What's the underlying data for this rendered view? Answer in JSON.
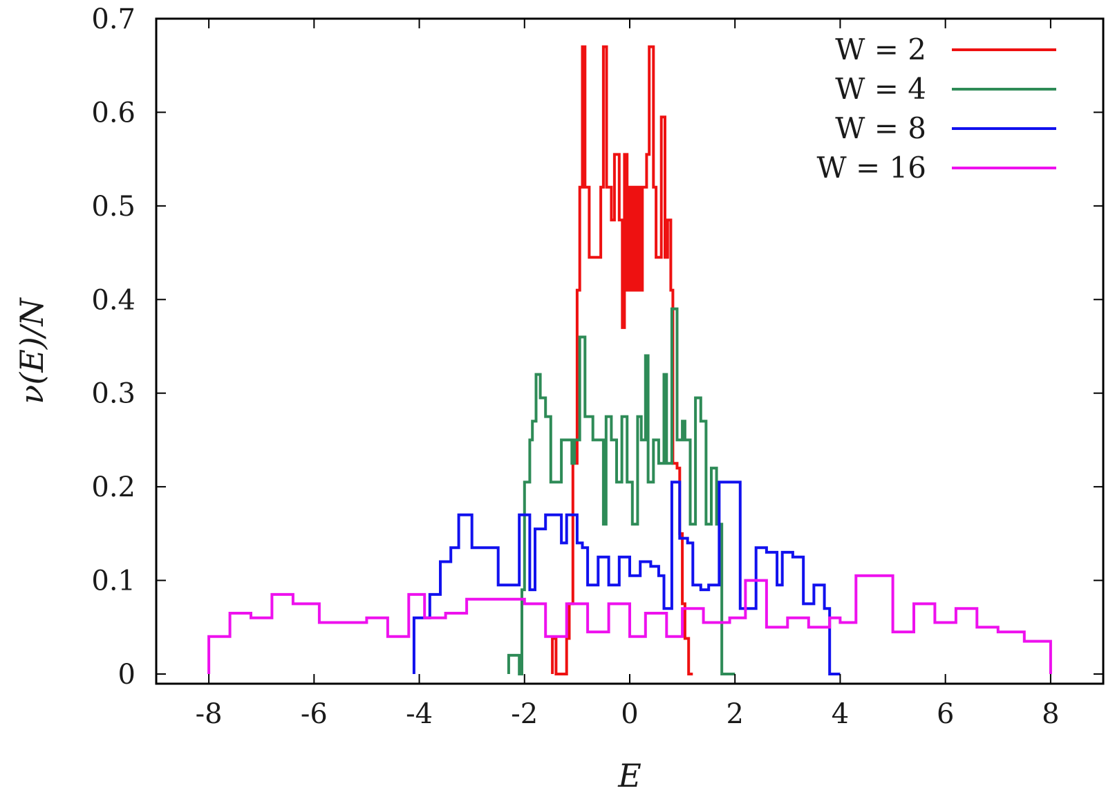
{
  "chart_data": {
    "type": "line",
    "title": "",
    "xlabel": "E",
    "ylabel": "ν(E)/N",
    "xlim": [
      -9,
      9
    ],
    "ylim": [
      0,
      0.7
    ],
    "xticks": [
      -8,
      -6,
      -4,
      -2,
      0,
      2,
      4,
      6,
      8
    ],
    "xtick_labels": [
      "-8",
      "-6",
      "-4",
      "-2",
      "0",
      "2",
      "4",
      "6",
      "8"
    ],
    "yticks": [
      0,
      0.1,
      0.2,
      0.3,
      0.4,
      0.5,
      0.6,
      0.7
    ],
    "ytick_labels": [
      "0",
      "0.1",
      "0.2",
      "0.3",
      "0.4",
      "0.5",
      "0.6",
      "0.7"
    ],
    "legend_position": "top-right",
    "grid": false,
    "series": [
      {
        "name": "W = 2",
        "color": "#ee1111",
        "edges": [
          -1.47,
          -1.4,
          -1.37,
          -1.2,
          -1.15,
          -1.08,
          -1.0,
          -0.95,
          -0.9,
          -0.85,
          -0.8,
          -0.77,
          -0.74,
          -0.7,
          -0.55,
          -0.5,
          -0.44,
          -0.35,
          -0.29,
          -0.2,
          -0.14,
          -0.1,
          -0.05,
          0.0,
          0.05,
          0.09,
          0.13,
          0.17,
          0.2,
          0.24,
          0.28,
          0.32,
          0.37,
          0.45,
          0.5,
          0.55,
          0.6,
          0.67,
          0.72,
          0.78,
          0.82,
          0.86,
          0.9,
          0.95,
          1.0,
          1.05,
          1.12,
          1.2
        ],
        "values": [
          0.038,
          0.0,
          0.0,
          0.038,
          0.075,
          0.225,
          0.41,
          0.52,
          0.67,
          0.52,
          0.52,
          0.445,
          0.445,
          0.445,
          0.52,
          0.67,
          0.52,
          0.485,
          0.555,
          0.485,
          0.37,
          0.555,
          0.41,
          0.52,
          0.41,
          0.52,
          0.41,
          0.52,
          0.41,
          0.52,
          0.52,
          0.555,
          0.67,
          0.52,
          0.445,
          0.445,
          0.595,
          0.445,
          0.485,
          0.41,
          0.225,
          0.225,
          0.22,
          0.15,
          0.075,
          0.038,
          0.0
        ]
      },
      {
        "name": "W = 4",
        "color": "#2e8b57",
        "edges": [
          -2.3,
          -2.2,
          -2.1,
          -2.05,
          -2.0,
          -1.95,
          -1.9,
          -1.85,
          -1.78,
          -1.7,
          -1.6,
          -1.5,
          -1.4,
          -1.3,
          -1.22,
          -1.1,
          -1.05,
          -0.95,
          -0.85,
          -0.75,
          -0.7,
          -0.6,
          -0.5,
          -0.45,
          -0.35,
          -0.25,
          -0.15,
          -0.05,
          0.05,
          0.15,
          0.22,
          0.3,
          0.35,
          0.45,
          0.55,
          0.65,
          0.7,
          0.8,
          0.9,
          1.0,
          1.05,
          1.15,
          1.25,
          1.35,
          1.45,
          1.55,
          1.65,
          1.75,
          1.85,
          2.0
        ],
        "values": [
          0.02,
          0.02,
          0.0,
          0.09,
          0.205,
          0.205,
          0.25,
          0.27,
          0.32,
          0.295,
          0.275,
          0.205,
          0.205,
          0.25,
          0.25,
          0.225,
          0.25,
          0.36,
          0.275,
          0.275,
          0.25,
          0.25,
          0.16,
          0.275,
          0.25,
          0.205,
          0.275,
          0.205,
          0.16,
          0.275,
          0.25,
          0.34,
          0.205,
          0.25,
          0.225,
          0.32,
          0.225,
          0.39,
          0.25,
          0.27,
          0.25,
          0.16,
          0.295,
          0.27,
          0.16,
          0.22,
          0.16,
          0.0,
          0.0
        ]
      },
      {
        "name": "W = 8",
        "color": "#1111ee",
        "edges": [
          -4.1,
          -4.0,
          -3.8,
          -3.6,
          -3.4,
          -3.25,
          -3.0,
          -2.5,
          -2.1,
          -1.9,
          -1.8,
          -1.6,
          -1.3,
          -1.2,
          -1.0,
          -0.9,
          -0.8,
          -0.6,
          -0.4,
          -0.2,
          0.0,
          0.2,
          0.4,
          0.55,
          0.65,
          0.8,
          0.95,
          1.1,
          1.2,
          1.35,
          1.5,
          1.7,
          1.9,
          2.0,
          2.1,
          2.4,
          2.6,
          2.8,
          2.9,
          3.1,
          3.3,
          3.5,
          3.7,
          3.8,
          4.0
        ],
        "values": [
          0.06,
          0.06,
          0.085,
          0.12,
          0.135,
          0.17,
          0.135,
          0.095,
          0.17,
          0.09,
          0.155,
          0.17,
          0.14,
          0.17,
          0.14,
          0.135,
          0.095,
          0.125,
          0.095,
          0.125,
          0.105,
          0.12,
          0.115,
          0.105,
          0.07,
          0.205,
          0.145,
          0.14,
          0.095,
          0.09,
          0.095,
          0.205,
          0.205,
          0.205,
          0.07,
          0.135,
          0.13,
          0.095,
          0.13,
          0.125,
          0.075,
          0.095,
          0.07,
          0.0
        ]
      },
      {
        "name": "W = 16",
        "color": "#ee11ee",
        "edges": [
          -8.0,
          -7.6,
          -7.2,
          -6.8,
          -6.4,
          -5.9,
          -5.4,
          -5.0,
          -4.6,
          -4.2,
          -3.9,
          -3.5,
          -3.1,
          -2.6,
          -2.0,
          -1.6,
          -1.2,
          -0.8,
          -0.4,
          0.0,
          0.3,
          0.7,
          1.0,
          1.4,
          1.9,
          2.2,
          2.6,
          3.0,
          3.4,
          3.8,
          4.0,
          4.3,
          5.0,
          5.4,
          5.8,
          6.2,
          6.6,
          7.0,
          7.5,
          8.0
        ],
        "values": [
          0.04,
          0.065,
          0.06,
          0.085,
          0.075,
          0.055,
          0.055,
          0.06,
          0.04,
          0.085,
          0.06,
          0.065,
          0.08,
          0.08,
          0.075,
          0.04,
          0.075,
          0.045,
          0.075,
          0.04,
          0.065,
          0.04,
          0.07,
          0.055,
          0.06,
          0.1,
          0.05,
          0.06,
          0.05,
          0.06,
          0.055,
          0.105,
          0.045,
          0.075,
          0.055,
          0.07,
          0.05,
          0.045,
          0.035
        ]
      }
    ]
  }
}
